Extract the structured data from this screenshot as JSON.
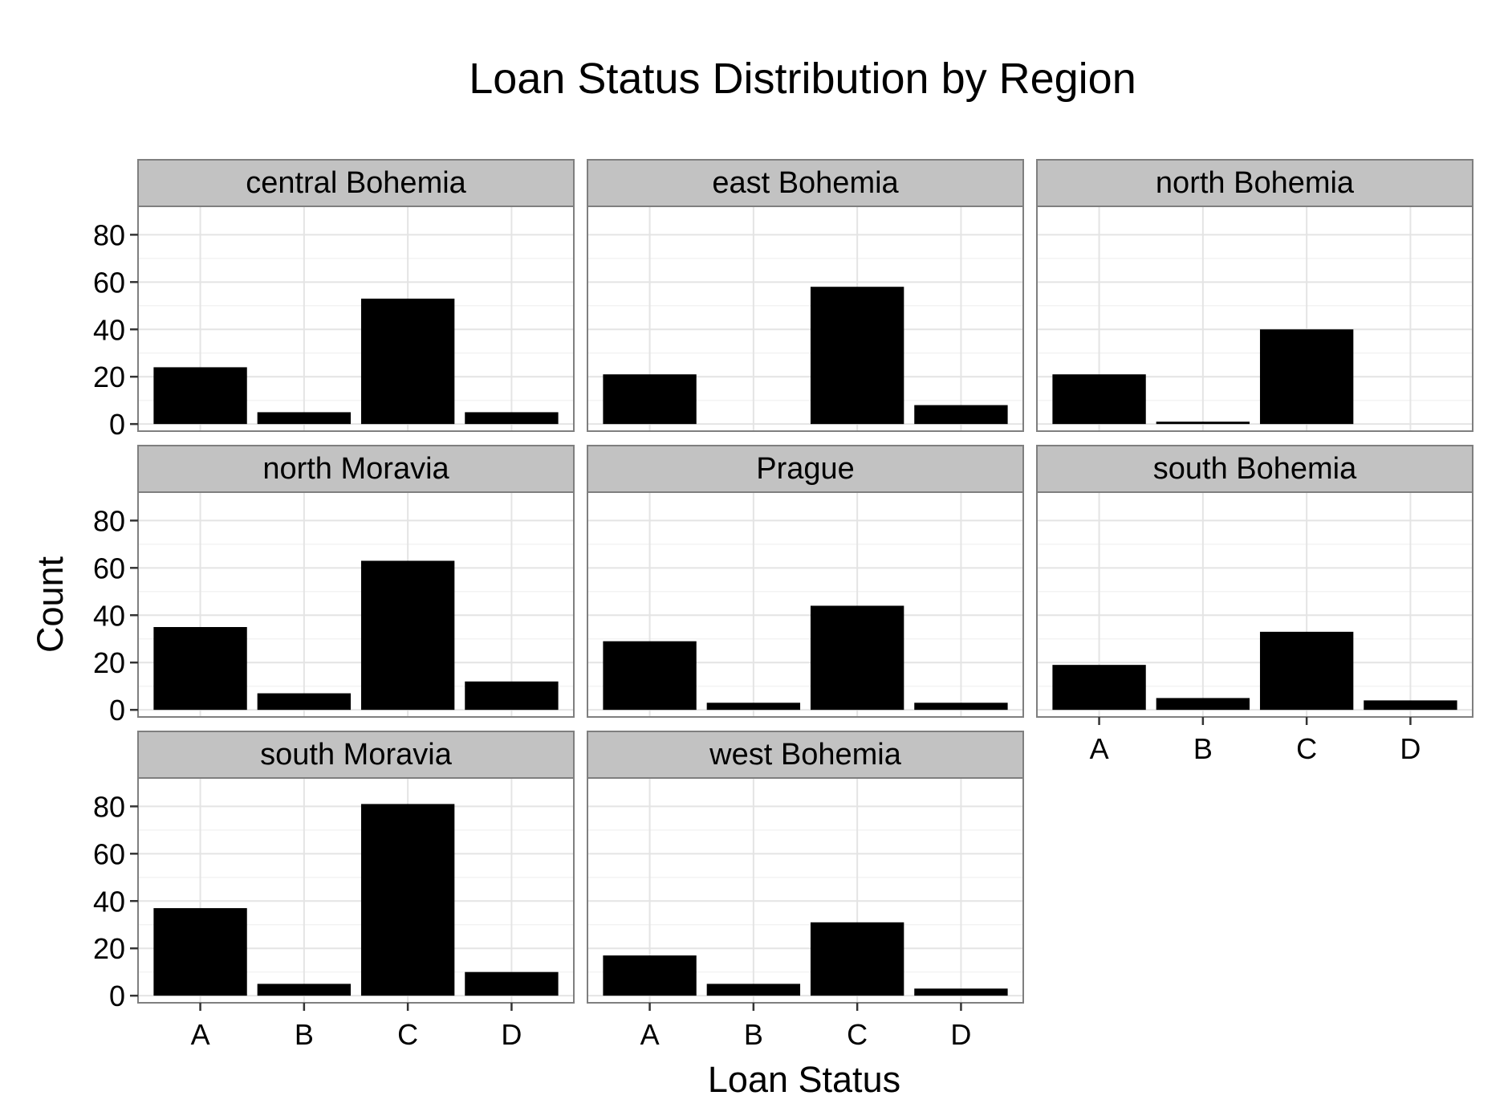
{
  "chart_data": {
    "type": "bar",
    "title": "Loan Status Distribution by Region",
    "xlabel": "Loan Status",
    "ylabel": "Count",
    "categories": [
      "A",
      "B",
      "C",
      "D"
    ],
    "y_ticks": [
      0,
      20,
      40,
      60,
      80
    ],
    "ylim": [
      -3,
      92
    ],
    "grid": true,
    "facets": [
      {
        "name": "central Bohemia",
        "values": [
          24,
          5,
          53,
          5
        ]
      },
      {
        "name": "east Bohemia",
        "values": [
          21,
          0,
          58,
          8
        ]
      },
      {
        "name": "north Bohemia",
        "values": [
          21,
          1,
          40,
          0
        ]
      },
      {
        "name": "north Moravia",
        "values": [
          35,
          7,
          63,
          12
        ]
      },
      {
        "name": "Prague",
        "values": [
          29,
          3,
          44,
          3
        ]
      },
      {
        "name": "south Bohemia",
        "values": [
          19,
          5,
          33,
          4
        ]
      },
      {
        "name": "south Moravia",
        "values": [
          37,
          5,
          81,
          10
        ]
      },
      {
        "name": "west Bohemia",
        "values": [
          17,
          5,
          31,
          3
        ]
      }
    ],
    "colors": {
      "bar": "#000000",
      "strip_fill": "#c2c2c2",
      "panel_border": "#7f7f7f",
      "grid_major": "#e4e4e4",
      "grid_minor": "#f3f3f3"
    }
  }
}
